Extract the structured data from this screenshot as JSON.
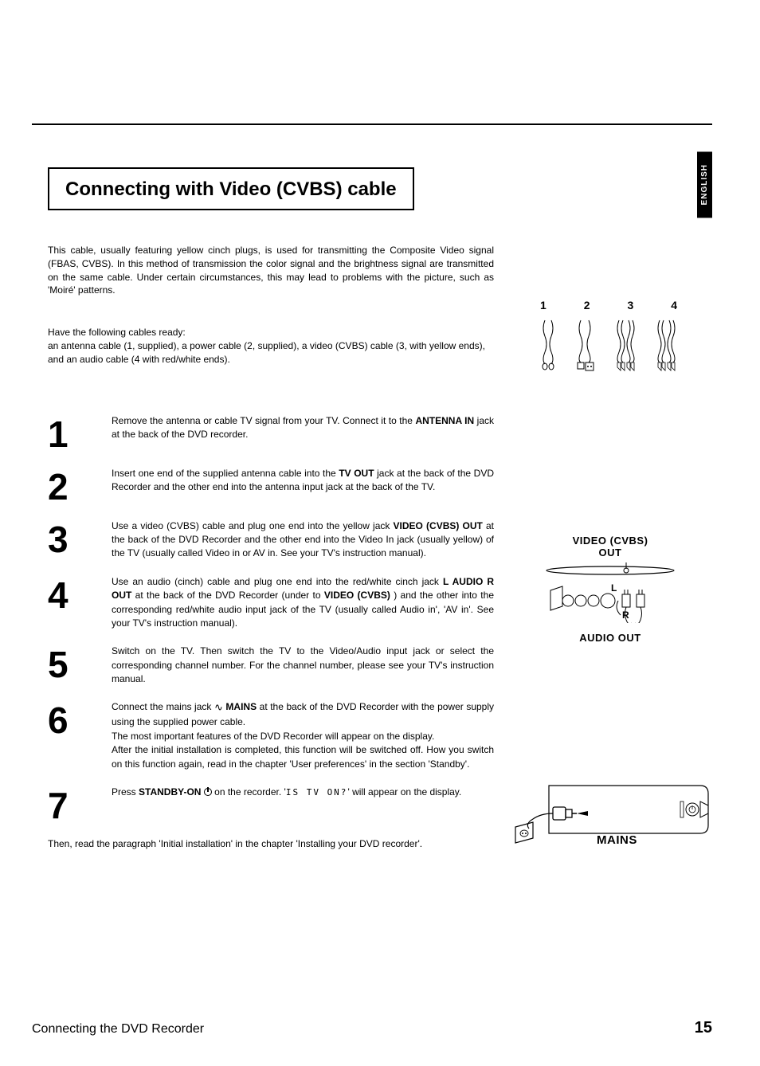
{
  "language_tab": "ENGLISH",
  "title": "Connecting with Video (CVBS) cable",
  "intro": "This cable, usually featuring yellow cinch plugs, is used for transmitting the Composite Video signal (FBAS, CVBS). In this method of transmission the color signal and the brightness signal are transmitted on the same cable. Under certain circumstances, this may lead to problems with the picture, such as 'Moiré' patterns.",
  "cables_ready_line1": "Have the following cables ready:",
  "cables_ready_line2": "an antenna cable (1, supplied), a power cable (2, supplied), a video (CVBS) cable (3, with yellow ends), and an audio cable (4 with red/white ends).",
  "figure1": {
    "labels": [
      "1",
      "2",
      "3",
      "4"
    ]
  },
  "figure2": {
    "top_label_line1": "VIDEO (CVBS)",
    "top_label_line2": "OUT",
    "letter_l": "L",
    "letter_r": "R",
    "bottom_label": "AUDIO OUT"
  },
  "figure3": {
    "label": "MAINS"
  },
  "steps": [
    {
      "num": "1",
      "html": "Remove the antenna or cable TV signal from your TV. Connect it to the <b>ANTENNA IN</b> jack at the back of the DVD recorder."
    },
    {
      "num": "2",
      "html": "Insert one end of the supplied antenna cable into the <b>TV OUT</b> jack at the back of the DVD Recorder and the other end into the antenna input jack at the back of the TV."
    },
    {
      "num": "3",
      "html": "Use a video (CVBS) cable and plug one end into the yellow jack <b>VIDEO (CVBS) OUT</b> at the back of the DVD Recorder and the other end into the Video In jack (usually yellow) of the TV (usually called Video in or AV in. See your TV's instruction manual)."
    },
    {
      "num": "4",
      "html": "Use an audio (cinch) cable and plug one end into the red/white cinch jack <b>L AUDIO R OUT</b> at the back of the DVD Recorder (under to <b>VIDEO (CVBS)</b> ) and the other into the corresponding red/white audio input jack of the TV (usually called Audio in', 'AV in'. See your TV's instruction manual)."
    },
    {
      "num": "5",
      "html": "Switch on the TV. Then switch the TV to the Video/Audio input jack or select the corresponding channel number. For the channel number, please see your TV's instruction manual."
    },
    {
      "num": "6",
      "html": "Connect the mains jack <span class='sine'>∿</span> <b>MAINS</b> at the back of the DVD Recorder with the power supply using the supplied power cable.<br>The most important features of the DVD Recorder will appear on the display.<br>After the initial installation is completed, this function will be switched off. How you switch on this function again, read in the chapter 'User preferences' in the section 'Standby'."
    },
    {
      "num": "7",
      "html": "Press <b>STANDBY-ON</b> <span class='power-icon'></span> on the recorder. '<span class='display-text'>IS TV ON?</span>' will appear on the display."
    }
  ],
  "closing": "Then, read the paragraph 'Initial installation' in the chapter 'Installing your DVD recorder'.",
  "footer_title": "Connecting the DVD Recorder",
  "footer_page": "15"
}
